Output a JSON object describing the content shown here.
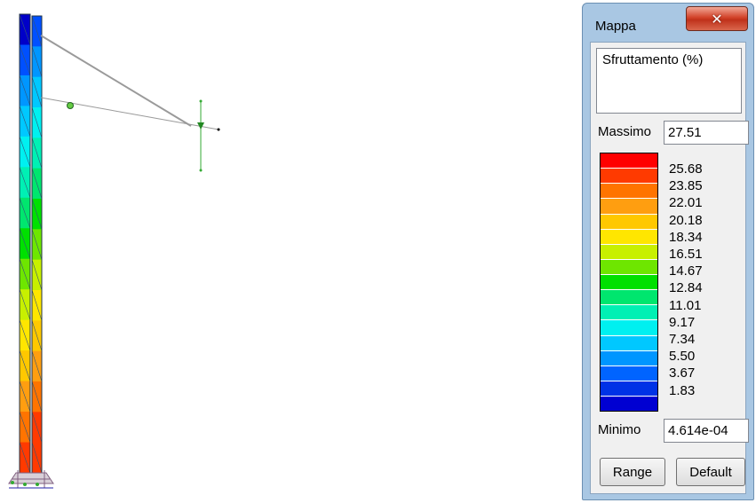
{
  "window": {
    "title": "Mappa",
    "close_icon": "close-icon"
  },
  "legend": {
    "quantity": "Sfruttamento (%)",
    "max_label": "Massimo",
    "max_value": "27.51",
    "min_label": "Minimo",
    "min_value": "4.614e-04",
    "colors": [
      "#ff0000",
      "#ff3a00",
      "#ff7400",
      "#ff9e10",
      "#ffc800",
      "#ffe600",
      "#c8f000",
      "#6ee600",
      "#00e000",
      "#00e66e",
      "#00f0b4",
      "#00f0f0",
      "#00c8ff",
      "#0096ff",
      "#0064ff",
      "#0032e6",
      "#0000d2"
    ],
    "labels": [
      "25.68",
      "23.85",
      "22.01",
      "20.18",
      "18.34",
      "16.51",
      "14.67",
      "12.84",
      "11.01",
      "9.17",
      "7.34",
      "5.50",
      "3.67",
      "1.83"
    ],
    "range_button": "Range",
    "default_button": "Default"
  },
  "model": {
    "column_colors": [
      "#0000c8",
      "#0050ff",
      "#0096ff",
      "#00c8ff",
      "#00f0f0",
      "#00f0b4",
      "#00e66e",
      "#00e000",
      "#6ee600",
      "#c8f000",
      "#ffe600",
      "#ffc800",
      "#ff9e10",
      "#ff7400",
      "#ff3a00"
    ]
  }
}
